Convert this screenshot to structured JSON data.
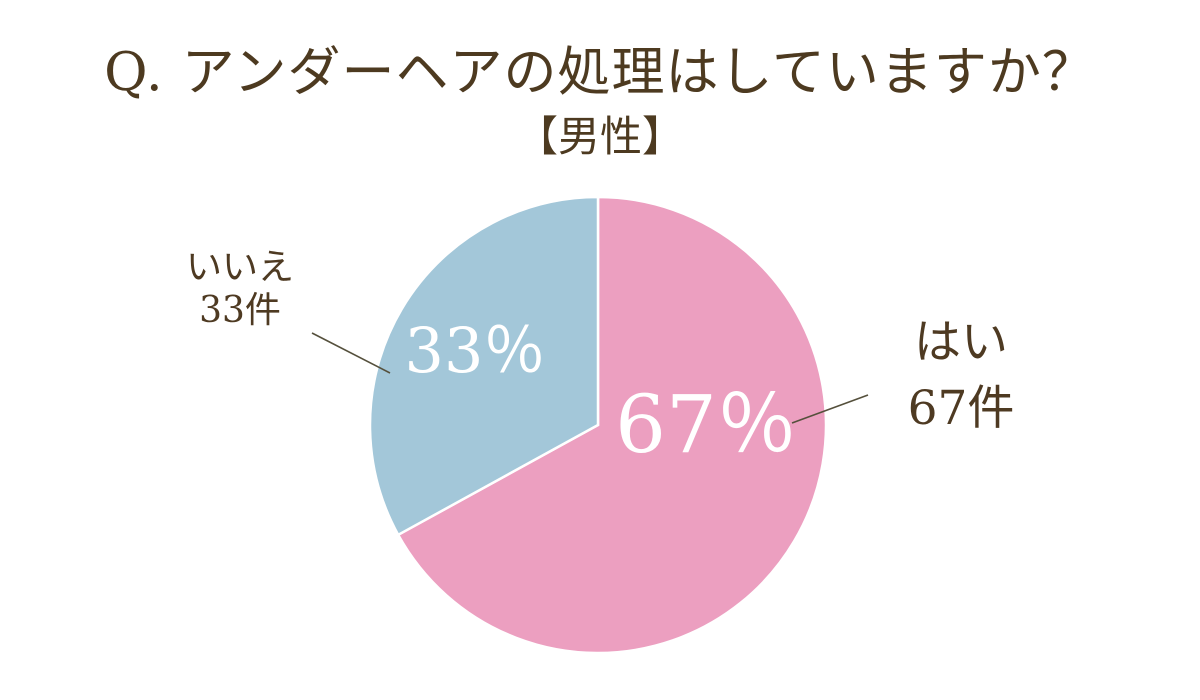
{
  "colors": {
    "background": "#ffffff",
    "title_text": "#4d3a20",
    "callout_text": "#4e3a22",
    "percent_text": "#ffffff",
    "leader_line": "#55503c",
    "slice_divider": "#ffffff"
  },
  "chart_data": {
    "type": "pie",
    "title": "Q. アンダーヘアの処理はしていますか？",
    "subtitle": "【男性】",
    "unit": "件",
    "start_angle": "top",
    "direction": "clockwise",
    "legend_position": "callouts-beside-slices",
    "slices": [
      {
        "label": "はい",
        "value": 67,
        "percent_label": "67％",
        "count_label": "67件",
        "color": "#ec9fc0"
      },
      {
        "label": "いいえ",
        "value": 33,
        "percent_label": "33％",
        "count_label": "33件",
        "color": "#a3c7d9"
      }
    ]
  }
}
